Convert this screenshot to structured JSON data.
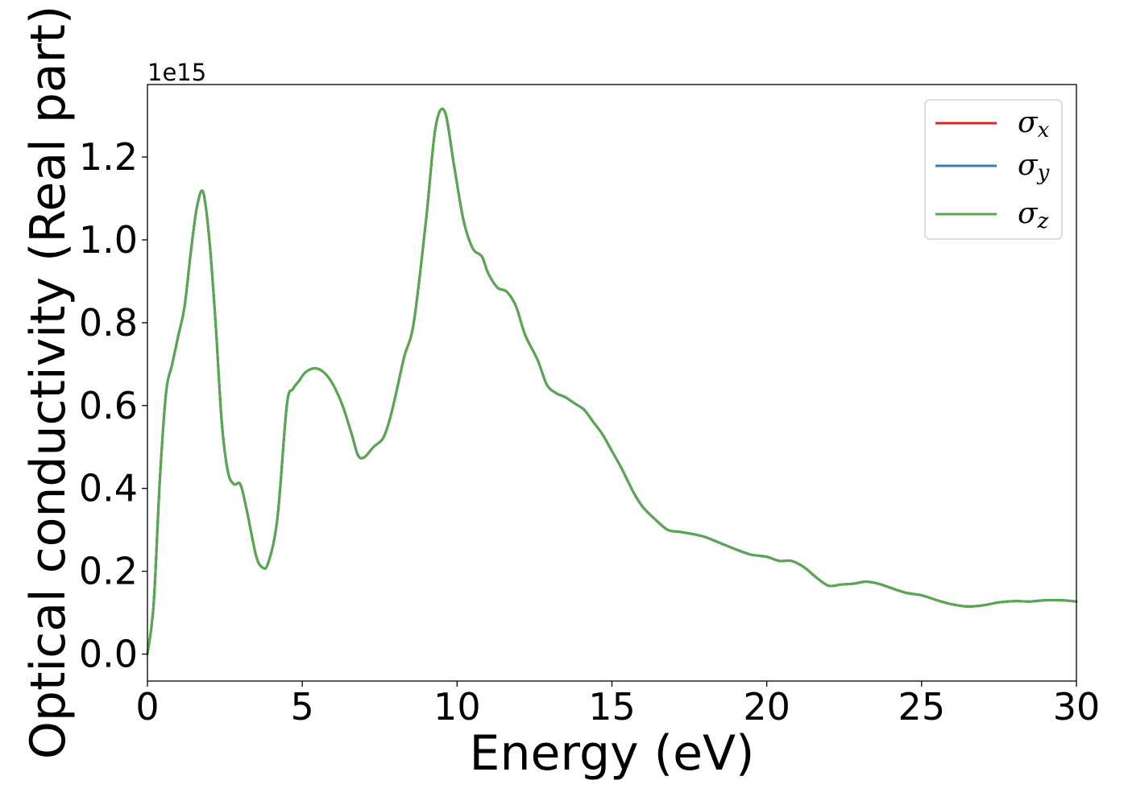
{
  "chart_data": {
    "type": "line",
    "xlabel": "Energy (eV)",
    "ylabel": "Optical conductivity (Real part)",
    "y_offset_text": "1e15",
    "xlim": [
      0,
      30
    ],
    "ylim": [
      -0.065,
      1.375
    ],
    "x_ticks": [
      0,
      5,
      10,
      15,
      20,
      25,
      30
    ],
    "x_tick_labels": [
      "0",
      "5",
      "10",
      "15",
      "20",
      "25",
      "30"
    ],
    "y_ticks": [
      0.0,
      0.2,
      0.4,
      0.6,
      0.8,
      1.0,
      1.2
    ],
    "y_tick_labels": [
      "0.0",
      "0.2",
      "0.4",
      "0.6",
      "0.8",
      "1.0",
      "1.2"
    ],
    "grid": false,
    "legend_position": "top-right",
    "x": [
      0.0,
      0.2,
      0.4,
      0.6,
      0.8,
      1.0,
      1.2,
      1.4,
      1.6,
      1.8,
      2.0,
      2.2,
      2.4,
      2.6,
      2.8,
      3.0,
      3.2,
      3.5,
      3.7,
      3.9,
      4.2,
      4.5,
      4.7,
      4.9,
      5.1,
      5.4,
      5.7,
      6.0,
      6.3,
      6.6,
      6.8,
      7.0,
      7.3,
      7.6,
      7.8,
      8.0,
      8.3,
      8.6,
      9.0,
      9.3,
      9.6,
      9.9,
      10.2,
      10.5,
      10.8,
      11.0,
      11.3,
      11.6,
      11.9,
      12.2,
      12.6,
      12.9,
      13.2,
      13.5,
      13.8,
      14.1,
      14.4,
      14.7,
      15.0,
      15.3,
      15.7,
      16.0,
      16.4,
      16.8,
      17.2,
      17.6,
      18.0,
      18.3,
      18.7,
      19.1,
      19.5,
      20.0,
      20.4,
      20.8,
      21.2,
      21.6,
      22.0,
      22.4,
      22.8,
      23.2,
      23.6,
      24.0,
      24.5,
      25.0,
      25.5,
      26.0,
      26.5,
      27.0,
      27.5,
      28.0,
      28.5,
      29.0,
      29.5,
      30.0
    ],
    "series": [
      {
        "name": "σ_x",
        "symbol": "σ",
        "subscript": "x",
        "color": "#d62728",
        "values": [
          0.0,
          0.12,
          0.42,
          0.63,
          0.7,
          0.77,
          0.84,
          0.97,
          1.08,
          1.115,
          1.0,
          0.8,
          0.56,
          0.44,
          0.41,
          0.41,
          0.35,
          0.24,
          0.21,
          0.22,
          0.33,
          0.6,
          0.64,
          0.66,
          0.68,
          0.69,
          0.68,
          0.65,
          0.6,
          0.53,
          0.48,
          0.475,
          0.5,
          0.52,
          0.56,
          0.62,
          0.72,
          0.8,
          1.05,
          1.27,
          1.31,
          1.18,
          1.05,
          0.98,
          0.96,
          0.92,
          0.885,
          0.875,
          0.84,
          0.77,
          0.71,
          0.65,
          0.63,
          0.62,
          0.605,
          0.59,
          0.56,
          0.53,
          0.49,
          0.45,
          0.39,
          0.355,
          0.325,
          0.3,
          0.295,
          0.29,
          0.283,
          0.274,
          0.262,
          0.25,
          0.24,
          0.235,
          0.225,
          0.225,
          0.21,
          0.185,
          0.165,
          0.168,
          0.17,
          0.175,
          0.17,
          0.16,
          0.148,
          0.142,
          0.13,
          0.12,
          0.115,
          0.118,
          0.125,
          0.128,
          0.127,
          0.13,
          0.13,
          0.127
        ]
      },
      {
        "name": "σ_y",
        "symbol": "σ",
        "subscript": "y",
        "color": "#3a7dbb",
        "values": [
          0.0,
          0.12,
          0.42,
          0.63,
          0.7,
          0.77,
          0.84,
          0.97,
          1.08,
          1.115,
          1.0,
          0.8,
          0.56,
          0.44,
          0.41,
          0.41,
          0.35,
          0.24,
          0.21,
          0.22,
          0.33,
          0.6,
          0.64,
          0.66,
          0.68,
          0.69,
          0.68,
          0.65,
          0.6,
          0.53,
          0.48,
          0.475,
          0.5,
          0.52,
          0.56,
          0.62,
          0.72,
          0.8,
          1.05,
          1.27,
          1.31,
          1.18,
          1.05,
          0.98,
          0.96,
          0.92,
          0.885,
          0.875,
          0.84,
          0.77,
          0.71,
          0.65,
          0.63,
          0.62,
          0.605,
          0.59,
          0.56,
          0.53,
          0.49,
          0.45,
          0.39,
          0.355,
          0.325,
          0.3,
          0.295,
          0.29,
          0.283,
          0.274,
          0.262,
          0.25,
          0.24,
          0.235,
          0.225,
          0.225,
          0.21,
          0.185,
          0.165,
          0.168,
          0.17,
          0.175,
          0.17,
          0.16,
          0.148,
          0.142,
          0.13,
          0.12,
          0.115,
          0.118,
          0.125,
          0.128,
          0.127,
          0.13,
          0.13,
          0.127
        ]
      },
      {
        "name": "σ_z",
        "symbol": "σ",
        "subscript": "z",
        "color": "#57a84f",
        "values": [
          0.0,
          0.12,
          0.42,
          0.63,
          0.7,
          0.77,
          0.84,
          0.97,
          1.08,
          1.115,
          1.0,
          0.8,
          0.56,
          0.44,
          0.41,
          0.41,
          0.35,
          0.24,
          0.21,
          0.22,
          0.33,
          0.6,
          0.64,
          0.66,
          0.68,
          0.69,
          0.68,
          0.65,
          0.6,
          0.53,
          0.48,
          0.475,
          0.5,
          0.52,
          0.56,
          0.62,
          0.72,
          0.8,
          1.05,
          1.27,
          1.31,
          1.18,
          1.05,
          0.98,
          0.96,
          0.92,
          0.885,
          0.875,
          0.84,
          0.77,
          0.71,
          0.65,
          0.63,
          0.62,
          0.605,
          0.59,
          0.56,
          0.53,
          0.49,
          0.45,
          0.39,
          0.355,
          0.325,
          0.3,
          0.295,
          0.29,
          0.283,
          0.274,
          0.262,
          0.25,
          0.24,
          0.235,
          0.225,
          0.225,
          0.21,
          0.185,
          0.165,
          0.168,
          0.17,
          0.175,
          0.17,
          0.16,
          0.148,
          0.142,
          0.13,
          0.12,
          0.115,
          0.118,
          0.125,
          0.128,
          0.127,
          0.13,
          0.13,
          0.127
        ]
      }
    ]
  }
}
